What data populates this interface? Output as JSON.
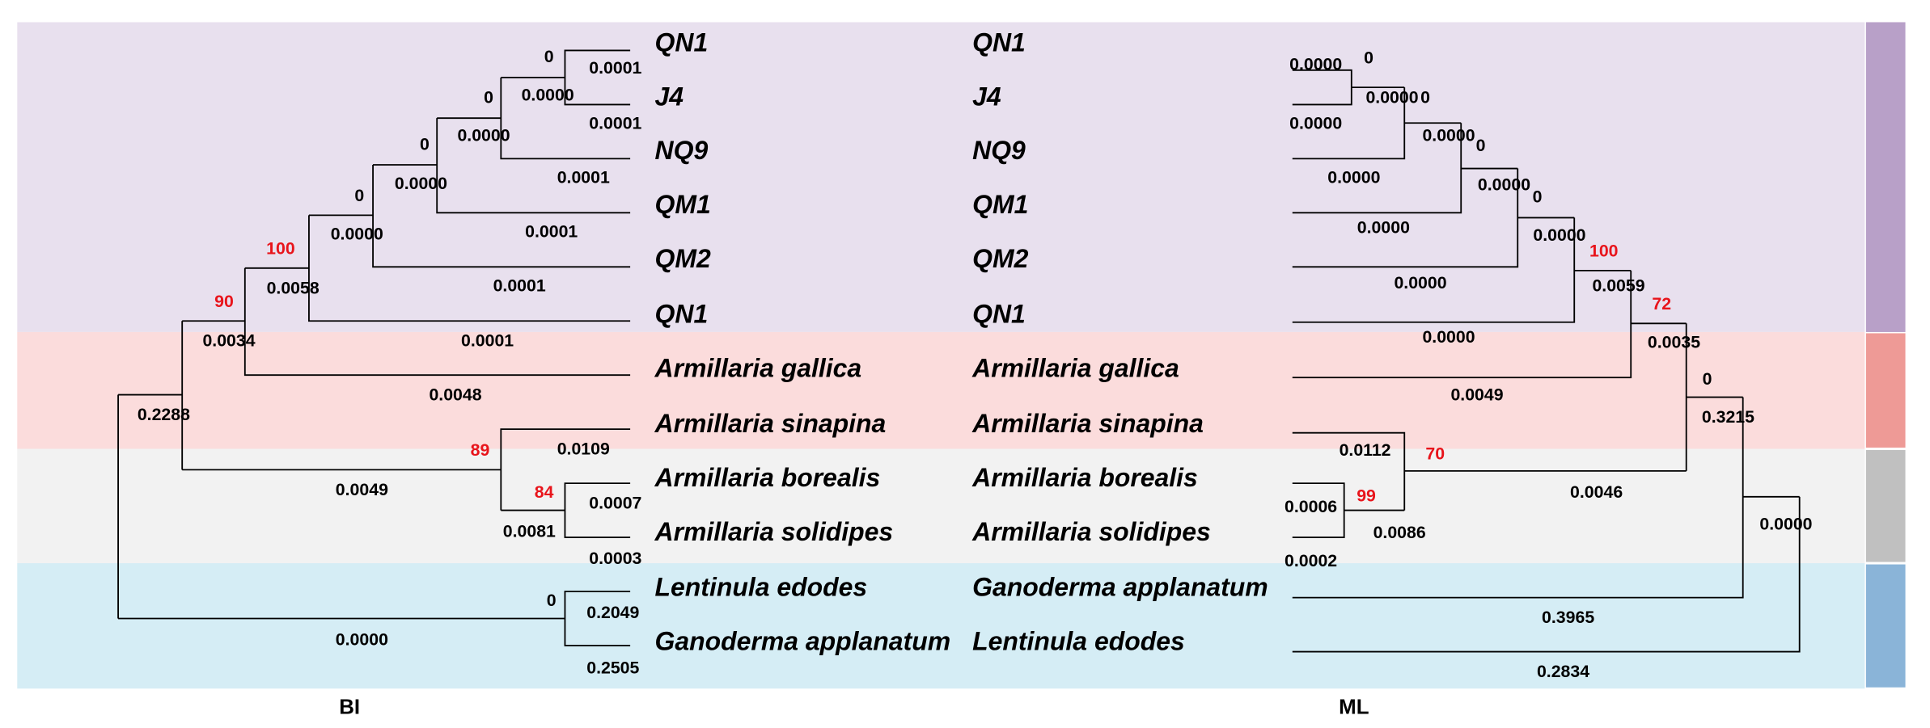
{
  "bi": {
    "caption": "BI",
    "taxa": [
      "QN1",
      "J4",
      "NQ9",
      "QM1",
      "QM2",
      "QN1",
      "Armillaria gallica",
      "Armillaria sinapina",
      "Armillaria borealis",
      "Armillaria solidipes",
      "Lentinula edodes",
      "Ganoderma applanatum"
    ],
    "support": [
      {
        "text": "0",
        "color": "#000000"
      },
      {
        "text": "0",
        "color": "#000000"
      },
      {
        "text": "0",
        "color": "#000000"
      },
      {
        "text": "0",
        "color": "#000000"
      },
      {
        "text": "100",
        "color": "#e8141b"
      },
      {
        "text": "90",
        "color": "#e8141b"
      },
      {
        "text": "89",
        "color": "#e8141b"
      },
      {
        "text": "84",
        "color": "#e8141b"
      },
      {
        "text": "0",
        "color": "#000000"
      }
    ],
    "lengths": [
      "0.0001",
      "0.0000",
      "0.0001",
      "0.0000",
      "0.0001",
      "0.0000",
      "0.0001",
      "0.0000",
      "0.0001",
      "0.0058",
      "0.0034",
      "0.0001",
      "0.0048",
      "0.2288",
      "0.0109",
      "0.0049",
      "0.0007",
      "0.0081",
      "0.0003",
      "0.2049",
      "0.0000",
      "0.2505"
    ]
  },
  "ml": {
    "caption": "ML",
    "taxa": [
      "QN1",
      "J4",
      "NQ9",
      "QM1",
      "QM2",
      "QN1",
      "Armillaria gallica",
      "Armillaria sinapina",
      "Armillaria borealis",
      "Armillaria solidipes",
      "Ganoderma applanatum",
      "Lentinula edodes"
    ],
    "support": [
      {
        "text": "0",
        "color": "#000000"
      },
      {
        "text": "0",
        "color": "#000000"
      },
      {
        "text": "0",
        "color": "#000000"
      },
      {
        "text": "0",
        "color": "#000000"
      },
      {
        "text": "100",
        "color": "#e8141b"
      },
      {
        "text": "72",
        "color": "#e8141b"
      },
      {
        "text": "0",
        "color": "#000000"
      },
      {
        "text": "70",
        "color": "#e8141b"
      },
      {
        "text": "99",
        "color": "#e8141b"
      }
    ],
    "lengths": [
      "0.0000",
      "0.0000",
      "0.0000",
      "0.0000",
      "0.0000",
      "0.0000",
      "0.0000",
      "0.0000",
      "0.0000",
      "0.0059",
      "0.0000",
      "0.0035",
      "0.0049",
      "0.3215",
      "0.0112",
      "0.0046",
      "0.0006",
      "0.0086",
      "0.0002",
      "0.0000",
      "0.3965",
      "0.2834"
    ]
  }
}
